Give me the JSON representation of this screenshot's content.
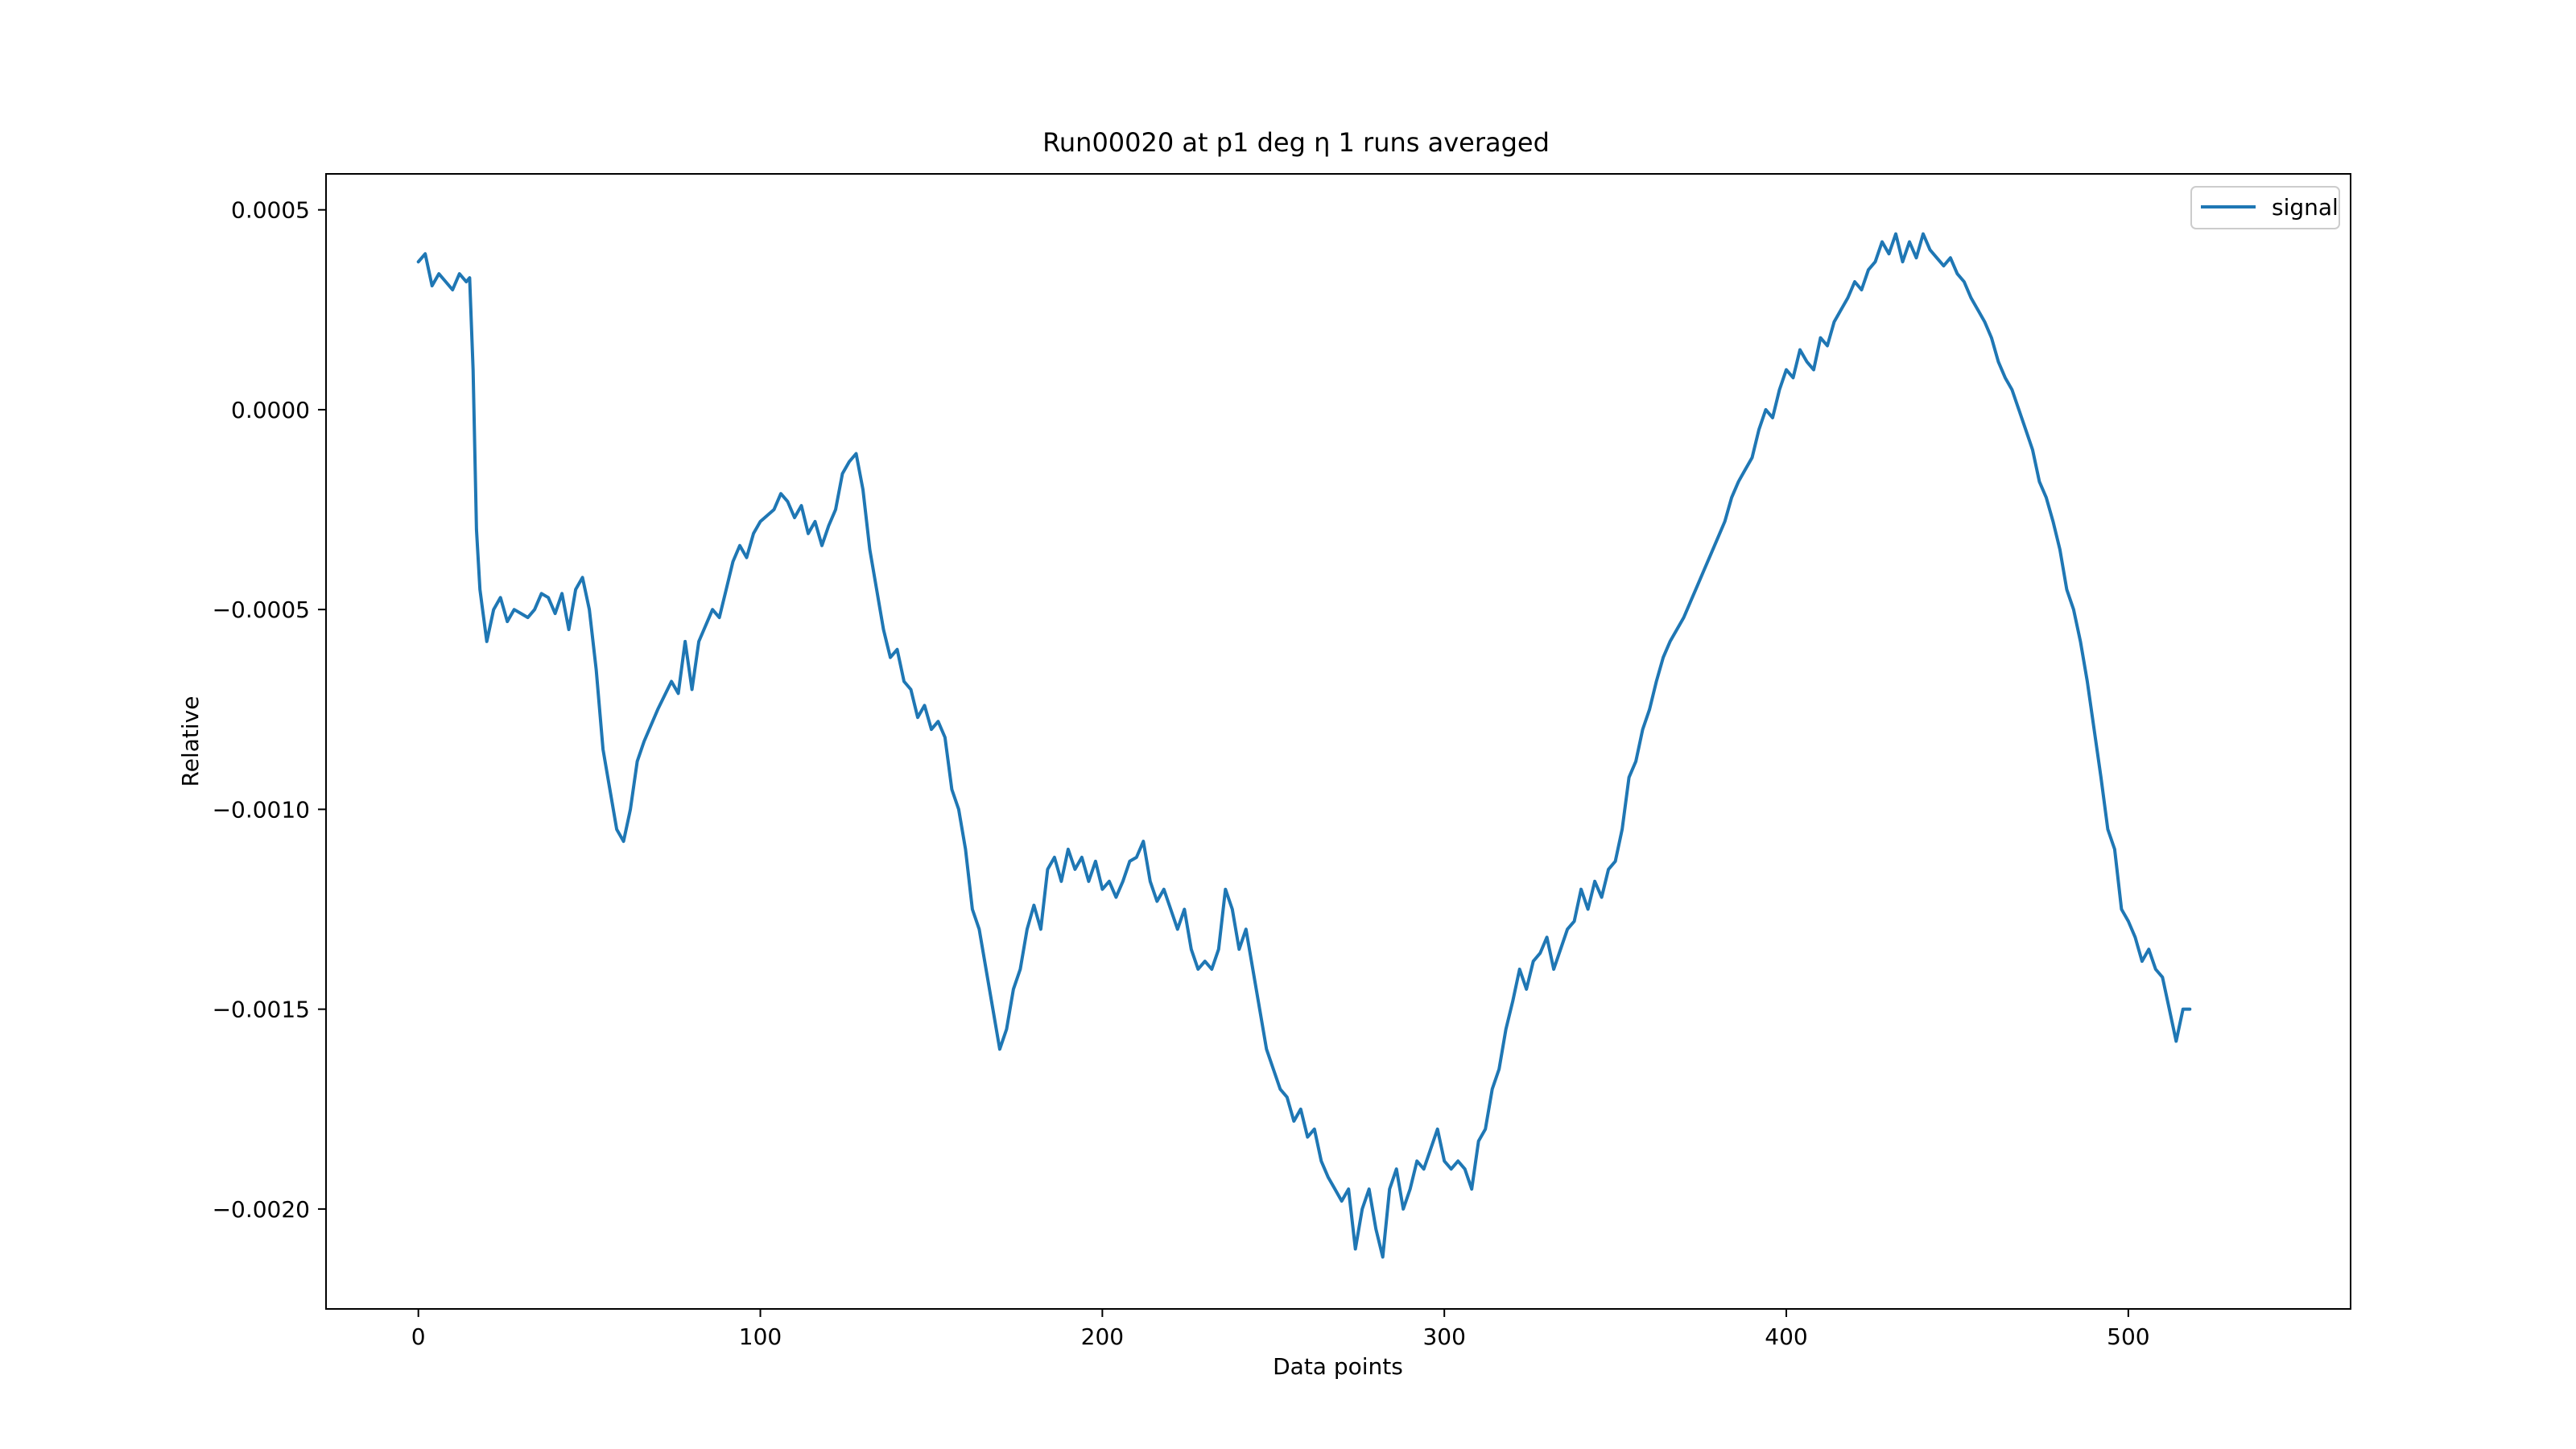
{
  "chart_data": {
    "type": "line",
    "title": "Run00020 at p1 deg η 1 runs averaged",
    "xlabel": "Data points",
    "ylabel": "Relative",
    "xlim": [
      -27,
      565
    ],
    "ylim": [
      -0.00225,
      0.00059
    ],
    "x_ticks": [
      0,
      100,
      200,
      300,
      400,
      500
    ],
    "x_tick_labels": [
      "0",
      "100",
      "200",
      "300",
      "400",
      "500"
    ],
    "y_ticks": [
      0.0005,
      0.0,
      -0.0005,
      -0.001,
      -0.0015,
      -0.002
    ],
    "y_tick_labels": [
      "0.0005",
      "0.0000",
      "−0.0005",
      "−0.0010",
      "−0.0015",
      "−0.0020"
    ],
    "grid": false,
    "legend_position": "top-right",
    "color": "#1f77b4",
    "series": [
      {
        "name": "signal",
        "keypoints": [
          [
            0,
            0.00037
          ],
          [
            2,
            0.00039
          ],
          [
            4,
            0.00031
          ],
          [
            6,
            0.00034
          ],
          [
            8,
            0.00032
          ],
          [
            10,
            0.0003
          ],
          [
            12,
            0.00034
          ],
          [
            14,
            0.00032
          ],
          [
            15,
            0.00033
          ],
          [
            16,
            0.0001
          ],
          [
            17,
            -0.0003
          ],
          [
            18,
            -0.00045
          ],
          [
            20,
            -0.00058
          ],
          [
            22,
            -0.0005
          ],
          [
            24,
            -0.00047
          ],
          [
            26,
            -0.00053
          ],
          [
            28,
            -0.0005
          ],
          [
            30,
            -0.00051
          ],
          [
            32,
            -0.00052
          ],
          [
            34,
            -0.0005
          ],
          [
            36,
            -0.00046
          ],
          [
            38,
            -0.00047
          ],
          [
            40,
            -0.00051
          ],
          [
            42,
            -0.00046
          ],
          [
            44,
            -0.00055
          ],
          [
            46,
            -0.00045
          ],
          [
            48,
            -0.00042
          ],
          [
            50,
            -0.0005
          ],
          [
            52,
            -0.00065
          ],
          [
            54,
            -0.00085
          ],
          [
            56,
            -0.00095
          ],
          [
            58,
            -0.00105
          ],
          [
            60,
            -0.00108
          ],
          [
            62,
            -0.001
          ],
          [
            64,
            -0.00088
          ],
          [
            66,
            -0.00083
          ],
          [
            70,
            -0.00075
          ],
          [
            74,
            -0.00068
          ],
          [
            76,
            -0.00071
          ],
          [
            78,
            -0.00058
          ],
          [
            80,
            -0.0007
          ],
          [
            82,
            -0.00058
          ],
          [
            86,
            -0.0005
          ],
          [
            88,
            -0.00052
          ],
          [
            90,
            -0.00045
          ],
          [
            92,
            -0.00038
          ],
          [
            94,
            -0.00034
          ],
          [
            96,
            -0.00037
          ],
          [
            98,
            -0.00031
          ],
          [
            100,
            -0.00028
          ],
          [
            104,
            -0.00025
          ],
          [
            106,
            -0.00021
          ],
          [
            108,
            -0.00023
          ],
          [
            110,
            -0.00027
          ],
          [
            112,
            -0.00024
          ],
          [
            114,
            -0.00031
          ],
          [
            116,
            -0.00028
          ],
          [
            118,
            -0.00034
          ],
          [
            120,
            -0.00029
          ],
          [
            122,
            -0.00025
          ],
          [
            124,
            -0.00016
          ],
          [
            126,
            -0.00013
          ],
          [
            128,
            -0.00011
          ],
          [
            130,
            -0.0002
          ],
          [
            132,
            -0.00035
          ],
          [
            134,
            -0.00045
          ],
          [
            136,
            -0.00055
          ],
          [
            138,
            -0.00062
          ],
          [
            140,
            -0.0006
          ],
          [
            142,
            -0.00068
          ],
          [
            144,
            -0.0007
          ],
          [
            146,
            -0.00077
          ],
          [
            148,
            -0.00074
          ],
          [
            150,
            -0.0008
          ],
          [
            152,
            -0.00078
          ],
          [
            154,
            -0.00082
          ],
          [
            156,
            -0.00095
          ],
          [
            158,
            -0.001
          ],
          [
            160,
            -0.0011
          ],
          [
            162,
            -0.00125
          ],
          [
            164,
            -0.0013
          ],
          [
            166,
            -0.0014
          ],
          [
            168,
            -0.0015
          ],
          [
            170,
            -0.0016
          ],
          [
            172,
            -0.00155
          ],
          [
            174,
            -0.00145
          ],
          [
            176,
            -0.0014
          ],
          [
            178,
            -0.0013
          ],
          [
            180,
            -0.00124
          ],
          [
            182,
            -0.0013
          ],
          [
            184,
            -0.00115
          ],
          [
            186,
            -0.00112
          ],
          [
            188,
            -0.00118
          ],
          [
            190,
            -0.0011
          ],
          [
            192,
            -0.00115
          ],
          [
            194,
            -0.00112
          ],
          [
            196,
            -0.00118
          ],
          [
            198,
            -0.00113
          ],
          [
            200,
            -0.0012
          ],
          [
            202,
            -0.00118
          ],
          [
            204,
            -0.00122
          ],
          [
            206,
            -0.00118
          ],
          [
            208,
            -0.00113
          ],
          [
            210,
            -0.00112
          ],
          [
            212,
            -0.00108
          ],
          [
            214,
            -0.00118
          ],
          [
            216,
            -0.00123
          ],
          [
            218,
            -0.0012
          ],
          [
            220,
            -0.00125
          ],
          [
            222,
            -0.0013
          ],
          [
            224,
            -0.00125
          ],
          [
            226,
            -0.00135
          ],
          [
            228,
            -0.0014
          ],
          [
            230,
            -0.00138
          ],
          [
            232,
            -0.0014
          ],
          [
            234,
            -0.00135
          ],
          [
            236,
            -0.0012
          ],
          [
            238,
            -0.00125
          ],
          [
            240,
            -0.00135
          ],
          [
            242,
            -0.0013
          ],
          [
            244,
            -0.0014
          ],
          [
            246,
            -0.0015
          ],
          [
            248,
            -0.0016
          ],
          [
            250,
            -0.00165
          ],
          [
            252,
            -0.0017
          ],
          [
            254,
            -0.00172
          ],
          [
            256,
            -0.00178
          ],
          [
            258,
            -0.00175
          ],
          [
            260,
            -0.00182
          ],
          [
            262,
            -0.0018
          ],
          [
            264,
            -0.00188
          ],
          [
            266,
            -0.00192
          ],
          [
            268,
            -0.00195
          ],
          [
            270,
            -0.00198
          ],
          [
            272,
            -0.00195
          ],
          [
            274,
            -0.0021
          ],
          [
            276,
            -0.002
          ],
          [
            278,
            -0.00195
          ],
          [
            280,
            -0.00205
          ],
          [
            282,
            -0.00212
          ],
          [
            284,
            -0.00195
          ],
          [
            286,
            -0.0019
          ],
          [
            288,
            -0.002
          ],
          [
            290,
            -0.00195
          ],
          [
            292,
            -0.00188
          ],
          [
            294,
            -0.0019
          ],
          [
            296,
            -0.00185
          ],
          [
            298,
            -0.0018
          ],
          [
            300,
            -0.00188
          ],
          [
            302,
            -0.0019
          ],
          [
            304,
            -0.00188
          ],
          [
            306,
            -0.0019
          ],
          [
            308,
            -0.00195
          ],
          [
            310,
            -0.00183
          ],
          [
            312,
            -0.0018
          ],
          [
            314,
            -0.0017
          ],
          [
            316,
            -0.00165
          ],
          [
            318,
            -0.00155
          ],
          [
            320,
            -0.00148
          ],
          [
            322,
            -0.0014
          ],
          [
            324,
            -0.00145
          ],
          [
            326,
            -0.00138
          ],
          [
            328,
            -0.00136
          ],
          [
            330,
            -0.00132
          ],
          [
            332,
            -0.0014
          ],
          [
            334,
            -0.00135
          ],
          [
            336,
            -0.0013
          ],
          [
            338,
            -0.00128
          ],
          [
            340,
            -0.0012
          ],
          [
            342,
            -0.00125
          ],
          [
            344,
            -0.00118
          ],
          [
            346,
            -0.00122
          ],
          [
            348,
            -0.00115
          ],
          [
            350,
            -0.00113
          ],
          [
            352,
            -0.00105
          ],
          [
            354,
            -0.00092
          ],
          [
            356,
            -0.00088
          ],
          [
            358,
            -0.0008
          ],
          [
            360,
            -0.00075
          ],
          [
            362,
            -0.00068
          ],
          [
            364,
            -0.00062
          ],
          [
            366,
            -0.00058
          ],
          [
            368,
            -0.00055
          ],
          [
            370,
            -0.00052
          ],
          [
            372,
            -0.00048
          ],
          [
            374,
            -0.00044
          ],
          [
            376,
            -0.0004
          ],
          [
            378,
            -0.00036
          ],
          [
            380,
            -0.00032
          ],
          [
            382,
            -0.00028
          ],
          [
            384,
            -0.00022
          ],
          [
            386,
            -0.00018
          ],
          [
            388,
            -0.00015
          ],
          [
            390,
            -0.00012
          ],
          [
            392,
            -5e-05
          ],
          [
            394,
            0.0
          ],
          [
            396,
            -2e-05
          ],
          [
            398,
            5e-05
          ],
          [
            400,
            0.0001
          ],
          [
            402,
            8e-05
          ],
          [
            404,
            0.00015
          ],
          [
            406,
            0.00012
          ],
          [
            408,
            0.0001
          ],
          [
            410,
            0.00018
          ],
          [
            412,
            0.00016
          ],
          [
            414,
            0.00022
          ],
          [
            416,
            0.00025
          ],
          [
            418,
            0.00028
          ],
          [
            420,
            0.00032
          ],
          [
            422,
            0.0003
          ],
          [
            424,
            0.00035
          ],
          [
            426,
            0.00037
          ],
          [
            428,
            0.00042
          ],
          [
            430,
            0.00039
          ],
          [
            432,
            0.00044
          ],
          [
            434,
            0.00037
          ],
          [
            436,
            0.00042
          ],
          [
            438,
            0.00038
          ],
          [
            440,
            0.00044
          ],
          [
            442,
            0.0004
          ],
          [
            444,
            0.00038
          ],
          [
            446,
            0.00036
          ],
          [
            448,
            0.00038
          ],
          [
            450,
            0.00034
          ],
          [
            452,
            0.00032
          ],
          [
            454,
            0.00028
          ],
          [
            456,
            0.00025
          ],
          [
            458,
            0.00022
          ],
          [
            460,
            0.00018
          ],
          [
            462,
            0.00012
          ],
          [
            464,
            8e-05
          ],
          [
            466,
            5e-05
          ],
          [
            468,
            0.0
          ],
          [
            470,
            -5e-05
          ],
          [
            472,
            -0.0001
          ],
          [
            474,
            -0.00018
          ],
          [
            476,
            -0.00022
          ],
          [
            478,
            -0.00028
          ],
          [
            480,
            -0.00035
          ],
          [
            482,
            -0.00045
          ],
          [
            484,
            -0.0005
          ],
          [
            486,
            -0.00058
          ],
          [
            488,
            -0.00068
          ],
          [
            490,
            -0.0008
          ],
          [
            492,
            -0.00092
          ],
          [
            494,
            -0.00105
          ],
          [
            496,
            -0.0011
          ],
          [
            498,
            -0.00125
          ],
          [
            500,
            -0.00128
          ],
          [
            502,
            -0.00132
          ],
          [
            504,
            -0.00138
          ],
          [
            506,
            -0.00135
          ],
          [
            508,
            -0.0014
          ],
          [
            510,
            -0.00142
          ],
          [
            512,
            -0.0015
          ],
          [
            514,
            -0.00158
          ],
          [
            516,
            -0.0015
          ],
          [
            518,
            -0.0015
          ]
        ]
      }
    ]
  }
}
